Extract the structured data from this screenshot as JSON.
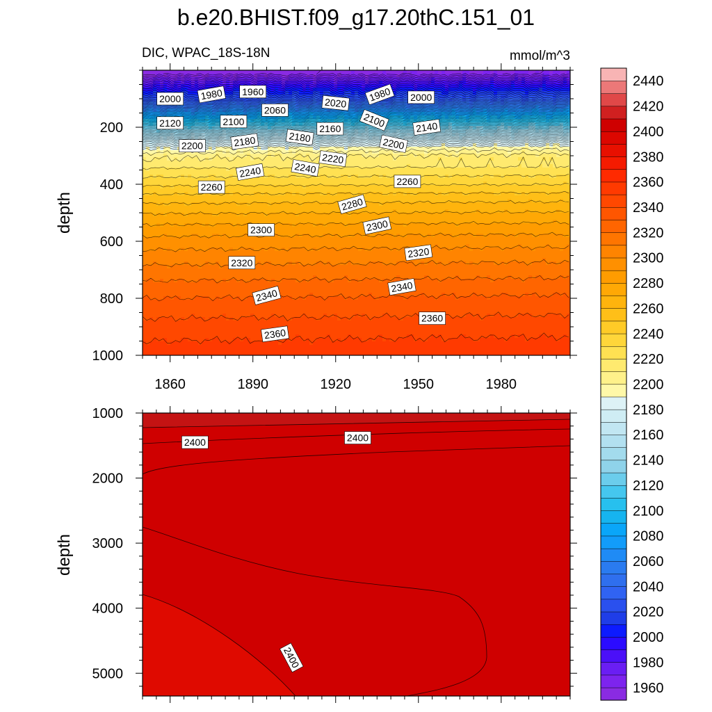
{
  "chart_data": {
    "type": "contour",
    "title": "b.e20.BHIST.f09_g17.20thC.151_01",
    "subtitle_left": "DIC, WPAC_18S-18N",
    "subtitle_right": "mmol/m^3",
    "ylabel": "depth",
    "x_range": [
      1850,
      2005
    ],
    "x_ticks": [
      1860,
      1890,
      1920,
      1950,
      1980
    ],
    "panels": [
      {
        "name": "upper",
        "depth_range": [
          0,
          1000
        ],
        "y_ticks": [
          200,
          400,
          600,
          800,
          1000
        ],
        "contour_labels": [
          {
            "text": "2000",
            "year": 1860,
            "depth": 100
          },
          {
            "text": "1980",
            "year": 1875,
            "depth": 85
          },
          {
            "text": "1960",
            "year": 1890,
            "depth": 75
          },
          {
            "text": "2060",
            "year": 1898,
            "depth": 140
          },
          {
            "text": "2020",
            "year": 1920,
            "depth": 115
          },
          {
            "text": "1980",
            "year": 1936,
            "depth": 85
          },
          {
            "text": "2000",
            "year": 1951,
            "depth": 95
          },
          {
            "text": "2120",
            "year": 1860,
            "depth": 185
          },
          {
            "text": "2100",
            "year": 1883,
            "depth": 180
          },
          {
            "text": "2160",
            "year": 1918,
            "depth": 205
          },
          {
            "text": "2100",
            "year": 1934,
            "depth": 175
          },
          {
            "text": "2140",
            "year": 1953,
            "depth": 200
          },
          {
            "text": "2180",
            "year": 1887,
            "depth": 250
          },
          {
            "text": "2180",
            "year": 1907,
            "depth": 235
          },
          {
            "text": "2200",
            "year": 1868,
            "depth": 265
          },
          {
            "text": "2200",
            "year": 1941,
            "depth": 258
          },
          {
            "text": "2220",
            "year": 1919,
            "depth": 310
          },
          {
            "text": "2240",
            "year": 1889,
            "depth": 357
          },
          {
            "text": "2240",
            "year": 1909,
            "depth": 343
          },
          {
            "text": "2260",
            "year": 1875,
            "depth": 410
          },
          {
            "text": "2260",
            "year": 1946,
            "depth": 390
          },
          {
            "text": "2280",
            "year": 1926,
            "depth": 470
          },
          {
            "text": "2300",
            "year": 1893,
            "depth": 560
          },
          {
            "text": "2300",
            "year": 1935,
            "depth": 545
          },
          {
            "text": "2320",
            "year": 1886,
            "depth": 675
          },
          {
            "text": "2320",
            "year": 1950,
            "depth": 640
          },
          {
            "text": "2340",
            "year": 1895,
            "depth": 790
          },
          {
            "text": "2340",
            "year": 1944,
            "depth": 760
          },
          {
            "text": "2360",
            "year": 1898,
            "depth": 925
          },
          {
            "text": "2360",
            "year": 1955,
            "depth": 870
          }
        ]
      },
      {
        "name": "lower",
        "depth_range": [
          1000,
          5350
        ],
        "y_ticks": [
          1000,
          2000,
          3000,
          4000,
          5000
        ],
        "contour_labels": [
          {
            "text": "2400",
            "year": 1869,
            "depth": 1450
          },
          {
            "text": "2400",
            "year": 1928,
            "depth": 1380
          },
          {
            "text": "2400",
            "year": 1904,
            "depth": 4760
          }
        ]
      }
    ],
    "colorbar": {
      "levels": [
        1960,
        1970,
        1980,
        1990,
        2000,
        2010,
        2020,
        2030,
        2040,
        2050,
        2060,
        2070,
        2080,
        2090,
        2100,
        2110,
        2120,
        2130,
        2140,
        2150,
        2160,
        2170,
        2180,
        2190,
        2200,
        2210,
        2220,
        2230,
        2240,
        2250,
        2260,
        2270,
        2280,
        2290,
        2300,
        2310,
        2320,
        2330,
        2340,
        2350,
        2360,
        2370,
        2380,
        2390,
        2400,
        2410,
        2420,
        2430,
        2440,
        2450
      ],
      "labels": [
        "1960",
        "1980",
        "2000",
        "2020",
        "2040",
        "2060",
        "2080",
        "2100",
        "2120",
        "2140",
        "2160",
        "2180",
        "2200",
        "2220",
        "2240",
        "2260",
        "2280",
        "2300",
        "2320",
        "2340",
        "2360",
        "2380",
        "2400",
        "2420",
        "2440"
      ],
      "colors": [
        "#8a2be2",
        "#7d24ee",
        "#6a1ef3",
        "#4b10f8",
        "#2b0bff",
        "#0d1bff",
        "#1f3de8",
        "#2a50ee",
        "#3063f2",
        "#2f6fee",
        "#2a7bf0",
        "#1f8bf5",
        "#129cfa",
        "#0aa6f9",
        "#16b4ef",
        "#27c0ee",
        "#45c7ef",
        "#6bcdec",
        "#8fd3ea",
        "#a3dbed",
        "#b2e0f0",
        "#c1e6f2",
        "#cfedf4",
        "#ddf2f6",
        "#fff8a8",
        "#fff18a",
        "#ffea6f",
        "#ffe152",
        "#ffd63a",
        "#ffcb27",
        "#ffbf18",
        "#ffb40d",
        "#ffa805",
        "#ff9c00",
        "#ff9000",
        "#ff8400",
        "#ff7500",
        "#ff6500",
        "#ff5600",
        "#ff4800",
        "#ff3a00",
        "#ff2a00",
        "#f51b00",
        "#e81000",
        "#dc0700",
        "#cf0000",
        "#d02020",
        "#e04848",
        "#ec7878",
        "#f8b4b4"
      ]
    }
  }
}
